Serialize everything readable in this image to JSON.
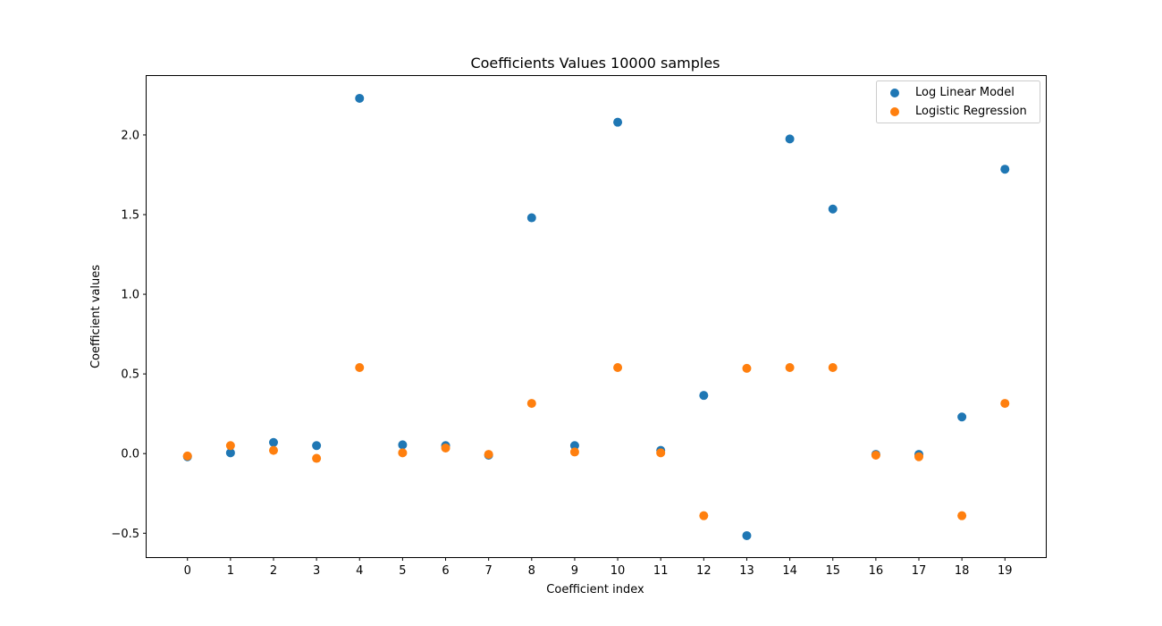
{
  "chart_data": {
    "type": "scatter",
    "title": "Coefficients Values 10000 samples",
    "xlabel": "Coefficient index",
    "ylabel": "Coefficient values",
    "x": [
      0,
      1,
      2,
      3,
      4,
      5,
      6,
      7,
      8,
      9,
      10,
      11,
      12,
      13,
      14,
      15,
      16,
      17,
      18,
      19
    ],
    "xticks": [
      "0",
      "1",
      "2",
      "3",
      "4",
      "5",
      "6",
      "7",
      "8",
      "9",
      "10",
      "11",
      "12",
      "13",
      "14",
      "15",
      "16",
      "17",
      "18",
      "19"
    ],
    "xlim": [
      -0.95,
      19.95
    ],
    "ylim": [
      -0.65,
      2.37
    ],
    "yticks": [
      -0.5,
      0.0,
      0.5,
      1.0,
      1.5,
      2.0
    ],
    "ytick_labels": [
      "−0.5",
      "0.0",
      "0.5",
      "1.0",
      "1.5",
      "2.0"
    ],
    "grid": false,
    "legend_position": "top-right",
    "series": [
      {
        "name": "Log Linear Model",
        "color": "#1f77b4",
        "values": [
          -0.02,
          0.005,
          0.07,
          0.05,
          2.23,
          0.055,
          0.05,
          -0.01,
          1.48,
          0.05,
          2.08,
          0.02,
          0.365,
          -0.515,
          1.975,
          1.535,
          -0.005,
          -0.005,
          0.23,
          1.785
        ]
      },
      {
        "name": "Logistic Regression",
        "color": "#ff7f0e",
        "values": [
          -0.015,
          0.05,
          0.02,
          -0.03,
          0.54,
          0.005,
          0.035,
          -0.005,
          0.315,
          0.01,
          0.54,
          0.005,
          -0.39,
          0.535,
          0.54,
          0.54,
          -0.01,
          -0.02,
          -0.39,
          0.315
        ]
      }
    ]
  }
}
